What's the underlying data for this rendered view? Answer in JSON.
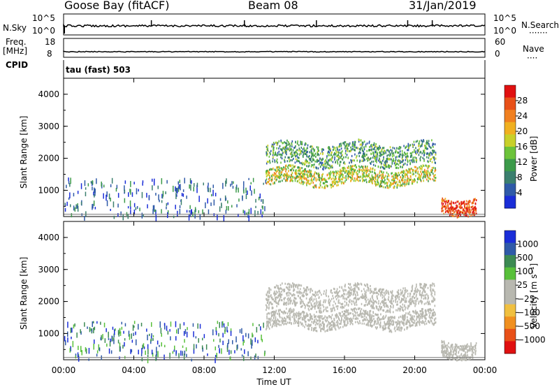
{
  "header": {
    "station": "Goose Bay (fitACF)",
    "beam": "Beam 08",
    "date": "31/Jan/2019"
  },
  "panel_labels": {
    "nsky": "N.Sky",
    "nsky_hi": "10^5",
    "nsky_lo": "10^0",
    "nsearch": "N.Search",
    "nsearch_hi": "10^5",
    "nsearch_lo": "10^0",
    "freq": "Freq.",
    "freq_unit": "[MHz]",
    "freq_hi": "18",
    "freq_lo": "8",
    "nave": "Nave",
    "nave_hi": "60",
    "nave_lo": "0",
    "cpid_label": "CPID",
    "cpid_value": "tau (fast) 503",
    "dots": "·······",
    "dots_short": "····"
  },
  "colors": {
    "power_scale": [
      "#1a2dd8",
      "#2f5aa8",
      "#3b7f6e",
      "#3c9a4a",
      "#6cc33a",
      "#c8d02a",
      "#f0b020",
      "#f08020",
      "#e85018",
      "#e01010"
    ],
    "velocity_scale": [
      "#1a2dd8",
      "#2f5aa8",
      "#3c8a52",
      "#58c03a",
      "#b8b8b0",
      "#b8b8b0",
      "#f0c040",
      "#f09020",
      "#e85018",
      "#e01010"
    ]
  },
  "chart_data": [
    {
      "type": "heatmap",
      "name": "power-panel",
      "xlabel": "",
      "ylabel": "Slant Range [km]",
      "xlim": [
        "00:00",
        "24:00"
      ],
      "ylim": [
        180,
        4500
      ],
      "yticks": [
        "1000",
        "2000",
        "3000",
        "4000"
      ],
      "colorbar": {
        "label": "Power [dB]",
        "ticks": [
          "28",
          "24",
          "20",
          "16",
          "12",
          "8",
          "4"
        ],
        "range": [
          0,
          30
        ]
      },
      "echo_regions": [
        {
          "t_start": "11:30",
          "t_end": "21:10",
          "range_km": [
            1200,
            1700
          ],
          "value": 16
        },
        {
          "t_start": "11:30",
          "t_end": "21:10",
          "range_km": [
            1800,
            2500
          ],
          "value": 10
        },
        {
          "t_start": "21:30",
          "t_end": "23:30",
          "range_km": [
            300,
            800
          ],
          "value": 26
        }
      ]
    },
    {
      "type": "heatmap",
      "name": "velocity-panel",
      "xlabel": "Time UT",
      "ylabel": "Slant Range [km]",
      "xlim": [
        "00:00",
        "24:00"
      ],
      "ylim": [
        180,
        4500
      ],
      "xticks": [
        "00:00",
        "04:00",
        "08:00",
        "12:00",
        "16:00",
        "20:00",
        "00:00"
      ],
      "yticks": [
        "1000",
        "2000",
        "3000",
        "4000"
      ],
      "colorbar": {
        "label": "Velocity [m s⁻¹]",
        "ticks": [
          "1000",
          "500",
          "100",
          "25",
          "−25",
          "−100",
          "−500",
          "−1000"
        ],
        "range": [
          -1000,
          1000
        ]
      },
      "echo_regions": [
        {
          "t_start": "11:30",
          "t_end": "21:10",
          "range_km": [
            1200,
            1700
          ],
          "value": 0
        },
        {
          "t_start": "11:30",
          "t_end": "21:10",
          "range_km": [
            1800,
            2500
          ],
          "value": -100
        },
        {
          "t_start": "21:30",
          "t_end": "23:30",
          "range_km": [
            300,
            800
          ],
          "value": 0
        }
      ]
    }
  ]
}
